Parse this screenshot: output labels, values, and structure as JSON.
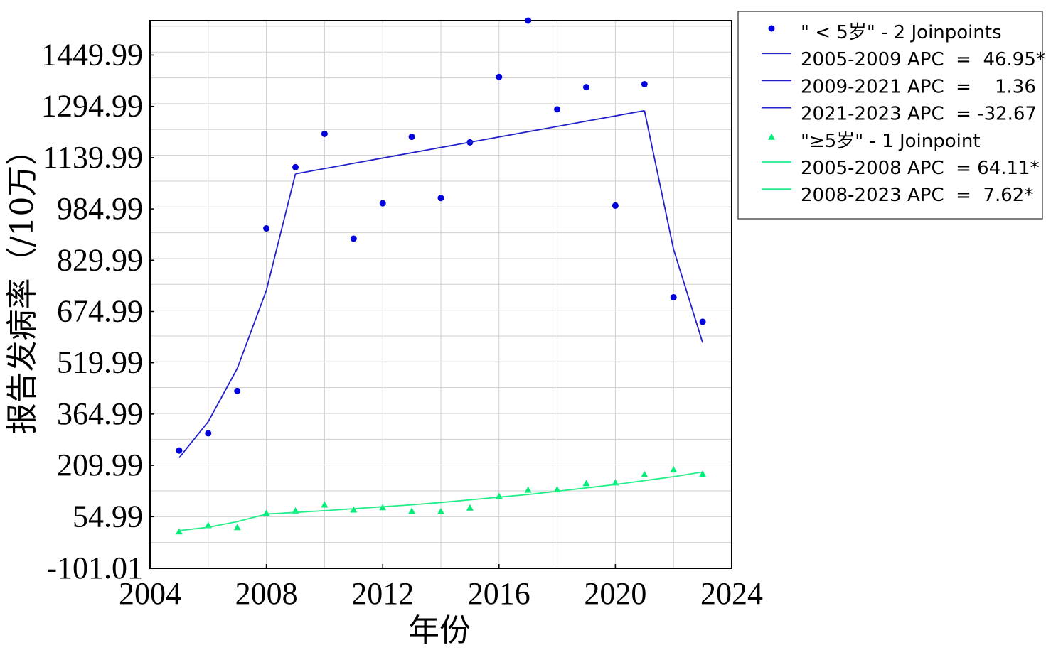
{
  "chart_data": {
    "type": "scatter",
    "xlabel": "年份",
    "ylabel": "报告发病率（/10万）",
    "xlim": [
      2004,
      2024
    ],
    "ylim": [
      -101.01,
      1554
    ],
    "x_ticks": [
      "2004",
      "2008",
      "2012",
      "2016",
      "2020",
      "2024"
    ],
    "y_ticks": [
      "-101.01",
      "54.99",
      "209.99",
      "364.99",
      "519.99",
      "674.99",
      "829.99",
      "984.99",
      "1139.99",
      "1294.99",
      "1449.99"
    ],
    "grid": true,
    "legend_position": "outside-top-right",
    "series": [
      {
        "name": "\" < 5岁\" - 2 Joinpoints",
        "kind": "points",
        "marker": "circle",
        "color": "#0000dd",
        "x": [
          2005,
          2006,
          2007,
          2008,
          2009,
          2010,
          2011,
          2012,
          2013,
          2014,
          2015,
          2016,
          2017,
          2018,
          2019,
          2020,
          2021,
          2022,
          2023
        ],
        "y": [
          255,
          307,
          435,
          926,
          1111,
          1212,
          895,
          1002,
          1203,
          1018,
          1186,
          1384,
          1554,
          1286,
          1353,
          995,
          1362,
          718,
          644
        ]
      },
      {
        "name": "2005-2009 APC  =  46.95*",
        "kind": "line",
        "color": "#2222cc",
        "x": [
          2005,
          2006,
          2007,
          2008,
          2009
        ],
        "y": [
          233,
          342,
          503,
          739,
          1091
        ]
      },
      {
        "name": "2009-2021 APC  =    1.36",
        "kind": "line",
        "color": "#2222cc",
        "x": [
          2009,
          2021
        ],
        "y": [
          1091,
          1282
        ]
      },
      {
        "name": "2021-2023 APC  = -32.67",
        "kind": "line",
        "color": "#2222cc",
        "x": [
          2021,
          2022,
          2023
        ],
        "y": [
          1282,
          863,
          581
        ]
      },
      {
        "name": "\"≥5岁\" - 1 Joinpoint",
        "kind": "points",
        "marker": "triangle",
        "color": "#00ee77",
        "x": [
          2005,
          2006,
          2007,
          2008,
          2009,
          2010,
          2011,
          2012,
          2013,
          2014,
          2015,
          2016,
          2017,
          2018,
          2019,
          2020,
          2021,
          2022,
          2023
        ],
        "y": [
          10,
          29,
          23,
          66,
          73,
          91,
          76,
          83,
          72,
          71,
          82,
          117,
          136,
          137,
          156,
          158,
          183,
          197,
          184
        ]
      },
      {
        "name": "2005-2008 APC  = 64.11*",
        "kind": "line",
        "color": "#22ee88",
        "x": [
          2005,
          2006,
          2007,
          2008
        ],
        "y": [
          13,
          23,
          40,
          63
        ]
      },
      {
        "name": "2008-2023 APC  =  7.62*",
        "kind": "line",
        "color": "#22ee88",
        "x": [
          2008,
          2009,
          2010,
          2011,
          2012,
          2013,
          2014,
          2015,
          2016,
          2017,
          2018,
          2019,
          2020,
          2021,
          2022,
          2023
        ],
        "y": [
          63,
          68,
          73,
          79,
          85,
          91,
          98,
          106,
          114,
          122,
          132,
          142,
          152,
          164,
          176,
          190
        ]
      }
    ]
  }
}
